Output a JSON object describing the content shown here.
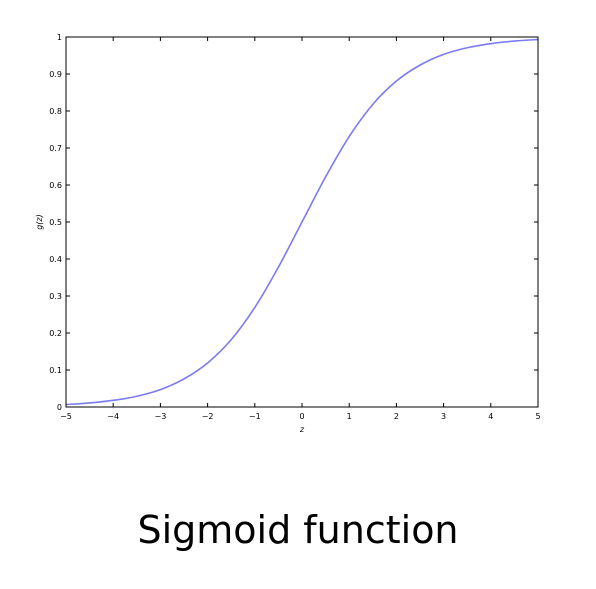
{
  "caption": "Sigmoid function",
  "chart_data": {
    "type": "line",
    "xlabel": "z",
    "ylabel": "g(z)",
    "xlim": [
      -5,
      5
    ],
    "ylim": [
      0,
      1
    ],
    "xticks": [
      -5,
      -4,
      -3,
      -2,
      -1,
      0,
      1,
      2,
      3,
      4,
      5
    ],
    "xtick_labels": [
      "−5",
      "−4",
      "−3",
      "−2",
      "−1",
      "0",
      "1",
      "2",
      "3",
      "4",
      "5"
    ],
    "yticks": [
      0,
      0.1,
      0.2,
      0.3,
      0.4,
      0.5,
      0.6,
      0.7,
      0.8,
      0.9,
      1
    ],
    "ytick_labels": [
      "0",
      "0.1",
      "0.2",
      "0.3",
      "0.4",
      "0.5",
      "0.6",
      "0.7",
      "0.8",
      "0.9",
      "1"
    ],
    "grid": false,
    "legend": "none",
    "series": [
      {
        "color": "#7b7bf2",
        "x": [
          -5,
          -4.5,
          -4,
          -3.5,
          -3,
          -2.5,
          -2,
          -1.5,
          -1,
          -0.5,
          0,
          0.5,
          1,
          1.5,
          2,
          2.5,
          3,
          3.5,
          4,
          4.5,
          5
        ],
        "y": [
          0.0067,
          0.011,
          0.018,
          0.029,
          0.047,
          0.076,
          0.119,
          0.182,
          0.269,
          0.378,
          0.5,
          0.622,
          0.731,
          0.818,
          0.881,
          0.924,
          0.953,
          0.971,
          0.982,
          0.989,
          0.9933
        ]
      }
    ]
  }
}
